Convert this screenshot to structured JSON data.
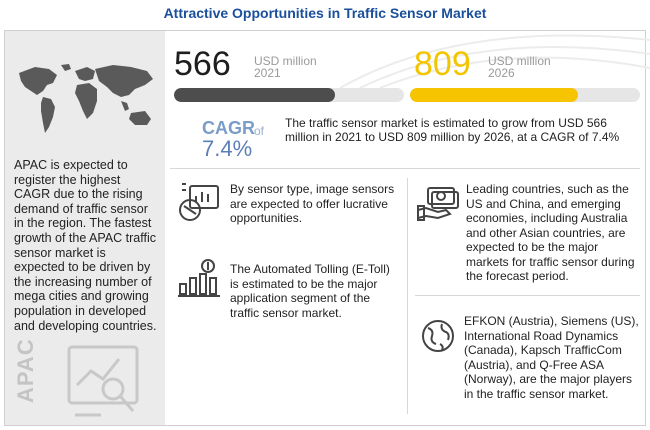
{
  "title": "Attractive Opportunities in Traffic Sensor Market",
  "market": {
    "start": {
      "value": "566",
      "unit": "USD million",
      "year": "2021",
      "fraction": 0.7
    },
    "end": {
      "value": "809",
      "unit": "USD million",
      "year": "2026",
      "fraction": 0.73
    }
  },
  "cagr": {
    "label": "CAGR",
    "of": "of",
    "value": "7.4%",
    "description": "The traffic sensor market is estimated to grow from USD 566 million in 2021 to USD 809 million by 2026, at a CAGR of 7.4%"
  },
  "apac": {
    "text": "APAC is expected to register the highest CAGR due to the rising demand of traffic sensor in the region. The fastest growth of the APAC traffic sensor market is expected to be driven by the increasing number of mega cities and growing population in developed and developing countries.",
    "watermark": "APAC"
  },
  "insights": [
    {
      "icon": "image-sensor-icon",
      "text": "By sensor type, image sensors are expected to offer lucrative opportunities."
    },
    {
      "icon": "toll-growth-icon",
      "text": "The Automated Tolling (E-Toll) is estimated to be the major application segment of the traffic sensor market."
    },
    {
      "icon": "money-hand-icon",
      "text": "Leading countries, such as the US and China, and emerging economies, including Australia and other Asian countries, are expected to be the major markets for traffic sensor during the forecast period."
    },
    {
      "icon": "globe-icon",
      "text": "EFKON (Austria), Siemens (US), International Road Dynamics (Canada), Kapsch TrafficCom (Austria), and Q-Free ASA (Norway), are the major players in the traffic sensor market."
    }
  ],
  "colors": {
    "title": "#1a4f9c",
    "accent_yellow": "#f6c400",
    "dark_bar": "#4d4d4d",
    "cagr_blue": "#5b7fb8"
  }
}
